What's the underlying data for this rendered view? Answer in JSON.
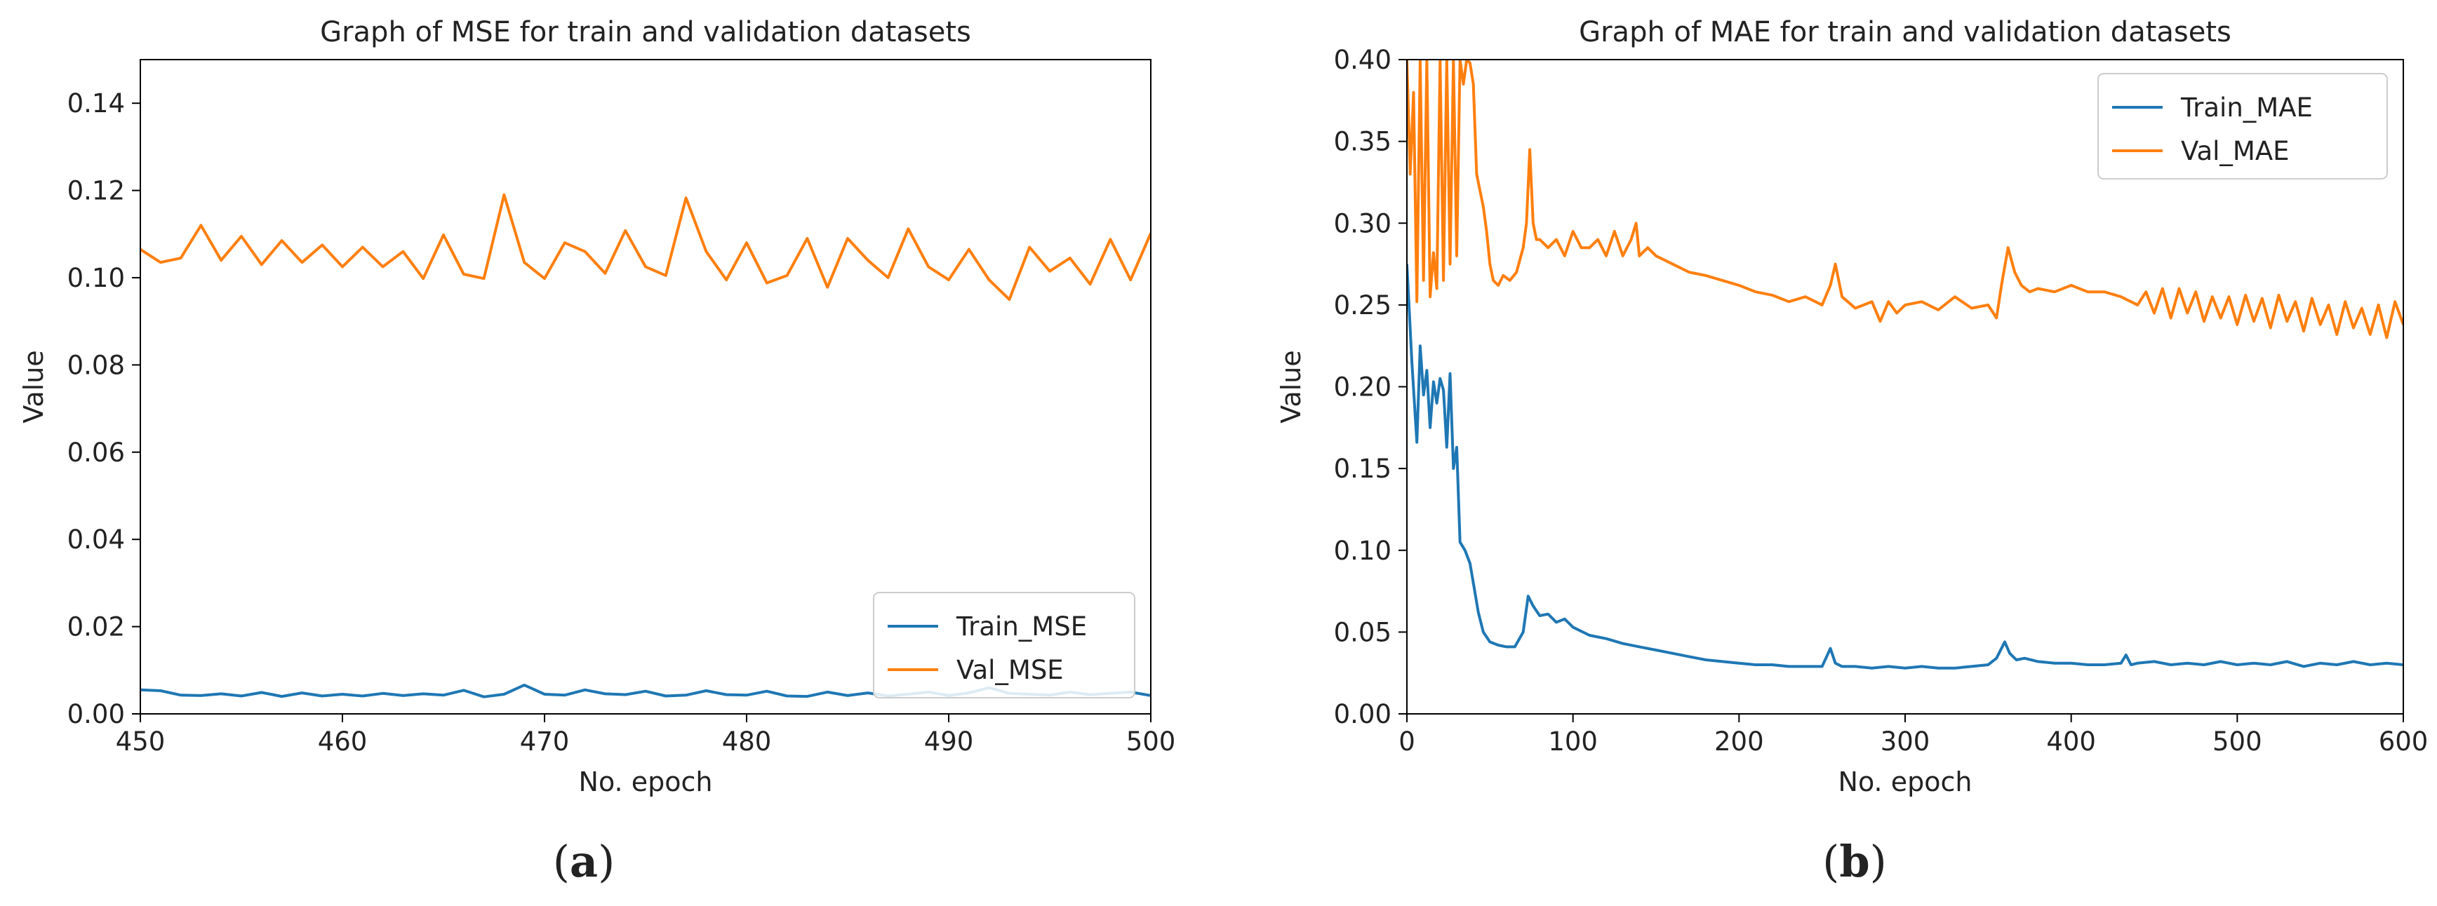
{
  "chart_data": [
    {
      "id": "a",
      "type": "line",
      "title": "Graph of MSE for train and validation datasets",
      "xlabel": "No. epoch",
      "ylabel": "Value",
      "xlim": [
        450,
        500
      ],
      "ylim": [
        0,
        0.15
      ],
      "xticks": [
        450,
        460,
        470,
        480,
        490,
        500
      ],
      "yticks": [
        0.0,
        0.02,
        0.04,
        0.06,
        0.08,
        0.1,
        0.12,
        0.14
      ],
      "xtick_labels": [
        "450",
        "460",
        "470",
        "480",
        "490",
        "500"
      ],
      "ytick_labels": [
        "0.00",
        "0.02",
        "0.04",
        "0.06",
        "0.08",
        "0.10",
        "0.12",
        "0.14"
      ],
      "legend": "lower-right",
      "caption_open": "(",
      "caption_letter": "a",
      "caption_close": ")",
      "series": [
        {
          "name": "Train_MSE",
          "color": "#1f77b4",
          "x": [
            450,
            451,
            452,
            453,
            454,
            455,
            456,
            457,
            458,
            459,
            460,
            461,
            462,
            463,
            464,
            465,
            466,
            467,
            468,
            469,
            470,
            471,
            472,
            473,
            474,
            475,
            476,
            477,
            478,
            479,
            480,
            481,
            482,
            483,
            484,
            485,
            486,
            487,
            488,
            489,
            490,
            491,
            492,
            493,
            494,
            495,
            496,
            497,
            498,
            499,
            500
          ],
          "y": [
            0.0055,
            0.0053,
            0.0043,
            0.0042,
            0.0046,
            0.0041,
            0.0049,
            0.004,
            0.0048,
            0.0041,
            0.0045,
            0.0041,
            0.0047,
            0.0042,
            0.0046,
            0.0043,
            0.0054,
            0.0039,
            0.0045,
            0.0066,
            0.0045,
            0.0043,
            0.0055,
            0.0046,
            0.0044,
            0.0052,
            0.0041,
            0.0043,
            0.0053,
            0.0044,
            0.0043,
            0.0052,
            0.0041,
            0.004,
            0.005,
            0.0042,
            0.0048,
            0.0041,
            0.0045,
            0.005,
            0.0042,
            0.0048,
            0.006,
            0.0047,
            0.0045,
            0.0043,
            0.005,
            0.0044,
            0.0047,
            0.005,
            0.0042
          ]
        },
        {
          "name": "Val_MSE",
          "color": "#ff7f0e",
          "x": [
            450,
            451,
            452,
            453,
            454,
            455,
            456,
            457,
            458,
            459,
            460,
            461,
            462,
            463,
            464,
            465,
            466,
            467,
            468,
            469,
            470,
            471,
            472,
            473,
            474,
            475,
            476,
            477,
            478,
            479,
            480,
            481,
            482,
            483,
            484,
            485,
            486,
            487,
            488,
            489,
            490,
            491,
            492,
            493,
            494,
            495,
            496,
            497,
            498,
            499,
            500
          ],
          "y": [
            0.1065,
            0.1035,
            0.1045,
            0.112,
            0.104,
            0.1095,
            0.103,
            0.1085,
            0.1035,
            0.1075,
            0.1025,
            0.107,
            0.1025,
            0.106,
            0.0998,
            0.1098,
            0.1008,
            0.0998,
            0.119,
            0.1035,
            0.0998,
            0.108,
            0.106,
            0.101,
            0.1108,
            0.1025,
            0.1005,
            0.1183,
            0.106,
            0.0995,
            0.108,
            0.0988,
            0.1005,
            0.109,
            0.0978,
            0.109,
            0.104,
            0.1,
            0.1112,
            0.1025,
            0.0995,
            0.1065,
            0.0995,
            0.095,
            0.107,
            0.1015,
            0.1045,
            0.0985,
            0.1088,
            0.0995,
            0.1102
          ]
        }
      ]
    },
    {
      "id": "b",
      "type": "line",
      "title": "Graph of MAE for train and validation datasets",
      "xlabel": "No. epoch",
      "ylabel": "Value",
      "xlim": [
        0,
        600
      ],
      "ylim": [
        0,
        0.4
      ],
      "xticks": [
        0,
        100,
        200,
        300,
        400,
        500,
        600
      ],
      "yticks": [
        0.0,
        0.05,
        0.1,
        0.15,
        0.2,
        0.25,
        0.3,
        0.35,
        0.4
      ],
      "xtick_labels": [
        "0",
        "100",
        "200",
        "300",
        "400",
        "500",
        "600"
      ],
      "ytick_labels": [
        "0.00",
        "0.05",
        "0.10",
        "0.15",
        "0.20",
        "0.25",
        "0.30",
        "0.35",
        "0.40"
      ],
      "legend": "top-right",
      "caption_open": "(",
      "caption_letter": "b",
      "caption_close": ")",
      "series": [
        {
          "name": "Train_MAE",
          "color": "#1f77b4",
          "x": [
            0,
            3,
            6,
            8,
            10,
            12,
            14,
            16,
            18,
            20,
            22,
            24,
            26,
            28,
            30,
            32,
            35,
            38,
            40,
            43,
            46,
            50,
            55,
            60,
            65,
            70,
            73,
            76,
            80,
            85,
            90,
            95,
            100,
            110,
            120,
            130,
            140,
            150,
            160,
            170,
            180,
            190,
            200,
            210,
            220,
            230,
            240,
            250,
            255,
            258,
            262,
            270,
            280,
            290,
            300,
            310,
            320,
            330,
            340,
            350,
            355,
            360,
            363,
            367,
            372,
            380,
            390,
            400,
            410,
            420,
            430,
            433,
            436,
            440,
            450,
            460,
            470,
            480,
            490,
            500,
            510,
            520,
            530,
            540,
            550,
            560,
            570,
            580,
            590,
            600
          ],
          "y": [
            0.275,
            0.215,
            0.166,
            0.225,
            0.195,
            0.21,
            0.175,
            0.203,
            0.19,
            0.205,
            0.198,
            0.163,
            0.208,
            0.15,
            0.163,
            0.105,
            0.1,
            0.092,
            0.08,
            0.062,
            0.05,
            0.044,
            0.042,
            0.041,
            0.041,
            0.05,
            0.072,
            0.066,
            0.06,
            0.061,
            0.056,
            0.058,
            0.053,
            0.048,
            0.046,
            0.043,
            0.041,
            0.039,
            0.037,
            0.035,
            0.033,
            0.032,
            0.031,
            0.03,
            0.03,
            0.029,
            0.029,
            0.029,
            0.04,
            0.031,
            0.029,
            0.029,
            0.028,
            0.029,
            0.028,
            0.029,
            0.028,
            0.028,
            0.029,
            0.03,
            0.034,
            0.044,
            0.037,
            0.033,
            0.034,
            0.032,
            0.031,
            0.031,
            0.03,
            0.03,
            0.031,
            0.036,
            0.03,
            0.031,
            0.032,
            0.03,
            0.031,
            0.03,
            0.032,
            0.03,
            0.031,
            0.03,
            0.032,
            0.029,
            0.031,
            0.03,
            0.032,
            0.03,
            0.031,
            0.03
          ]
        },
        {
          "name": "Val_MAE",
          "color": "#ff7f0e",
          "x": [
            0,
            2,
            4,
            6,
            8,
            10,
            12,
            14,
            16,
            18,
            20,
            22,
            24,
            26,
            28,
            30,
            32,
            34,
            36,
            38,
            40,
            42,
            44,
            46,
            48,
            50,
            52,
            55,
            58,
            62,
            66,
            70,
            72,
            74,
            76,
            78,
            80,
            85,
            90,
            95,
            100,
            105,
            110,
            115,
            120,
            125,
            130,
            135,
            138,
            140,
            145,
            150,
            160,
            170,
            180,
            190,
            200,
            210,
            220,
            230,
            240,
            250,
            255,
            258,
            262,
            270,
            280,
            285,
            290,
            295,
            300,
            310,
            320,
            330,
            340,
            350,
            355,
            358,
            362,
            366,
            370,
            375,
            380,
            390,
            400,
            410,
            420,
            430,
            440,
            445,
            450,
            455,
            460,
            465,
            470,
            475,
            480,
            485,
            490,
            495,
            500,
            505,
            510,
            515,
            520,
            525,
            530,
            535,
            540,
            545,
            550,
            555,
            560,
            565,
            570,
            575,
            580,
            585,
            590,
            595,
            600
          ],
          "y": [
            0.4,
            0.33,
            0.38,
            0.252,
            0.4,
            0.265,
            0.4,
            0.255,
            0.282,
            0.26,
            0.4,
            0.265,
            0.4,
            0.275,
            0.4,
            0.28,
            0.4,
            0.385,
            0.4,
            0.398,
            0.385,
            0.33,
            0.32,
            0.31,
            0.295,
            0.275,
            0.265,
            0.262,
            0.268,
            0.265,
            0.27,
            0.285,
            0.3,
            0.345,
            0.3,
            0.29,
            0.29,
            0.285,
            0.29,
            0.28,
            0.295,
            0.285,
            0.285,
            0.29,
            0.28,
            0.295,
            0.28,
            0.29,
            0.3,
            0.28,
            0.285,
            0.28,
            0.275,
            0.27,
            0.268,
            0.265,
            0.262,
            0.258,
            0.256,
            0.252,
            0.255,
            0.25,
            0.262,
            0.275,
            0.255,
            0.248,
            0.252,
            0.24,
            0.252,
            0.245,
            0.25,
            0.252,
            0.247,
            0.255,
            0.248,
            0.25,
            0.242,
            0.262,
            0.285,
            0.27,
            0.262,
            0.258,
            0.26,
            0.258,
            0.262,
            0.258,
            0.258,
            0.255,
            0.25,
            0.258,
            0.245,
            0.26,
            0.242,
            0.26,
            0.245,
            0.258,
            0.24,
            0.255,
            0.242,
            0.255,
            0.238,
            0.256,
            0.24,
            0.254,
            0.236,
            0.256,
            0.24,
            0.252,
            0.234,
            0.254,
            0.238,
            0.25,
            0.232,
            0.252,
            0.236,
            0.248,
            0.232,
            0.25,
            0.23,
            0.252,
            0.238
          ]
        }
      ]
    }
  ]
}
